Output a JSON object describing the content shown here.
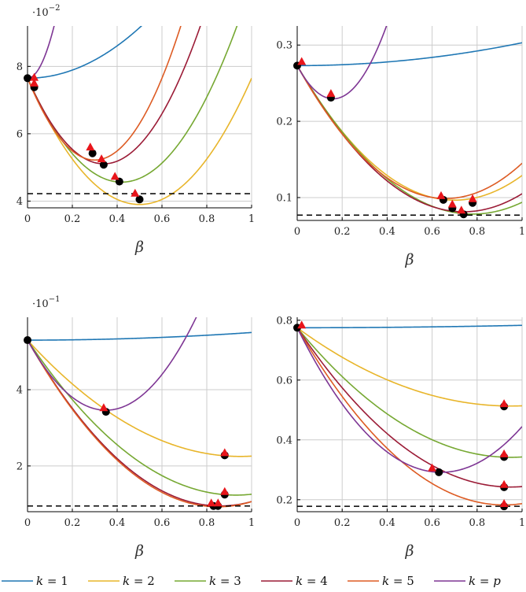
{
  "chart_data": [
    {
      "type": "line",
      "xlabel": "β",
      "scale_label": "·10",
      "scale_exp": "−2",
      "xlim": [
        0,
        1
      ],
      "ylim": [
        3.8,
        9.2
      ],
      "xticks": [
        0,
        0.2,
        0.4,
        0.6,
        0.8,
        1
      ],
      "xtick_labels": [
        "0",
        "0.2",
        "0.4",
        "0.6",
        "0.8",
        "1"
      ],
      "yticks": [
        4,
        6,
        8
      ],
      "ytick_labels": [
        "4",
        "6",
        "8"
      ],
      "dashed_level": 4.22,
      "start": 7.65,
      "series": [
        {
          "key": "1",
          "min_x": 0.0,
          "min_y": 7.65,
          "curv": 6
        },
        {
          "key": "2",
          "min_x": 0.5,
          "min_y": 4.05,
          "curv": 15
        },
        {
          "key": "3",
          "min_x": 0.42,
          "min_y": 4.58,
          "curv": 17.5
        },
        {
          "key": "4",
          "min_x": 0.34,
          "min_y": 5.05,
          "curv": 22
        },
        {
          "key": "5",
          "min_x": 0.3,
          "min_y": 5.42,
          "curv": 27
        },
        {
          "key": "p",
          "min_x": 0.0,
          "min_y": 7.65,
          "curv": 110
        }
      ],
      "black_points": [
        [
          0,
          7.65
        ],
        [
          0.03,
          7.38
        ],
        [
          0.29,
          5.42
        ],
        [
          0.34,
          5.08
        ],
        [
          0.41,
          4.58
        ],
        [
          0.5,
          4.05
        ]
      ],
      "red_triangles": [
        [
          0.03,
          7.62
        ],
        [
          0.03,
          7.45
        ],
        [
          0.28,
          5.55
        ],
        [
          0.33,
          5.2
        ],
        [
          0.39,
          4.68
        ],
        [
          0.48,
          4.18
        ]
      ]
    },
    {
      "type": "line",
      "xlabel": "β",
      "scale_label": "",
      "scale_exp": "",
      "xlim": [
        0,
        1
      ],
      "ylim": [
        0.07,
        0.325
      ],
      "xticks": [
        0,
        0.2,
        0.4,
        0.6,
        0.8,
        1
      ],
      "xtick_labels": [
        "0",
        "0.2",
        "0.4",
        "0.6",
        "0.8",
        "1"
      ],
      "yticks": [
        0.1,
        0.2,
        0.3
      ],
      "ytick_labels": [
        "0.1",
        "0.2",
        "0.3"
      ],
      "dashed_level": 0.077,
      "start": 0.273,
      "series": [
        {
          "key": "1",
          "min_x": 0.0,
          "min_y": 0.273,
          "curv": 0.03
        },
        {
          "key": "2",
          "min_x": 0.7,
          "min_y": 0.095,
          "curv": 0.36
        },
        {
          "key": "3",
          "min_x": 0.78,
          "min_y": 0.077,
          "curv": 0.32
        },
        {
          "key": "4",
          "min_x": 0.74,
          "min_y": 0.083,
          "curv": 0.35
        },
        {
          "key": "5",
          "min_x": 0.66,
          "min_y": 0.097,
          "curv": 0.4
        },
        {
          "key": "p",
          "min_x": 0.16,
          "min_y": 0.23,
          "curv": 1.7
        }
      ],
      "black_points": [
        [
          0,
          0.273
        ],
        [
          0.15,
          0.231
        ],
        [
          0.65,
          0.097
        ],
        [
          0.69,
          0.086
        ],
        [
          0.74,
          0.078
        ],
        [
          0.78,
          0.093
        ]
      ],
      "red_triangles": [
        [
          0.02,
          0.276
        ],
        [
          0.15,
          0.234
        ],
        [
          0.64,
          0.1
        ],
        [
          0.69,
          0.089
        ],
        [
          0.73,
          0.081
        ],
        [
          0.78,
          0.096
        ]
      ]
    },
    {
      "type": "line",
      "xlabel": "β",
      "scale_label": "·10",
      "scale_exp": "−1",
      "xlim": [
        0,
        1
      ],
      "ylim": [
        0.8,
        5.9
      ],
      "xticks": [
        0,
        0.2,
        0.4,
        0.6,
        0.8,
        1
      ],
      "xtick_labels": [
        "0",
        "0.2",
        "0.4",
        "0.6",
        "0.8",
        "1"
      ],
      "yticks": [
        2,
        4
      ],
      "ytick_labels": [
        "2",
        "4"
      ],
      "dashed_level": 0.95,
      "start": 5.3,
      "series": [
        {
          "key": "1",
          "min_x": 0.0,
          "min_y": 5.3,
          "curv": 0.2
        },
        {
          "key": "2",
          "min_x": 0.95,
          "min_y": 2.25,
          "curv": 3.38
        },
        {
          "key": "3",
          "min_x": 0.93,
          "min_y": 1.23,
          "curv": 4.7
        },
        {
          "key": "4",
          "min_x": 0.86,
          "min_y": 0.95,
          "curv": 5.88
        },
        {
          "key": "5",
          "min_x": 0.85,
          "min_y": 0.93,
          "curv": 6.05
        },
        {
          "key": "p",
          "min_x": 0.35,
          "min_y": 3.42,
          "curv": 15
        }
      ],
      "black_points": [
        [
          0,
          5.3
        ],
        [
          0.35,
          3.42
        ],
        [
          0.88,
          2.28
        ],
        [
          0.88,
          1.25
        ],
        [
          0.83,
          0.95
        ],
        [
          0.85,
          0.95
        ]
      ],
      "red_triangles": [
        [
          0.34,
          3.48
        ],
        [
          0.88,
          2.3
        ],
        [
          0.88,
          1.28
        ],
        [
          0.82,
          0.98
        ],
        [
          0.85,
          0.98
        ]
      ]
    },
    {
      "type": "line",
      "xlabel": "β",
      "scale_label": "",
      "scale_exp": "",
      "xlim": [
        0,
        1
      ],
      "ylim": [
        0.16,
        0.81
      ],
      "xticks": [
        0,
        0.2,
        0.4,
        0.6,
        0.8,
        1
      ],
      "xtick_labels": [
        "0",
        "0.2",
        "0.4",
        "0.6",
        "0.8",
        "1"
      ],
      "yticks": [
        0.2,
        0.4,
        0.6,
        0.8
      ],
      "ytick_labels": [
        "0.2",
        "0.4",
        "0.6",
        "0.8"
      ],
      "dashed_level": 0.178,
      "start": 0.775,
      "series": [
        {
          "key": "1",
          "min_x": 0.0,
          "min_y": 0.775,
          "curv": 0.008
        },
        {
          "key": "2",
          "min_x": 0.95,
          "min_y": 0.512,
          "curv": 0.29
        },
        {
          "key": "3",
          "min_x": 0.95,
          "min_y": 0.343,
          "curv": 0.48
        },
        {
          "key": "4",
          "min_x": 0.95,
          "min_y": 0.24,
          "curv": 0.59
        },
        {
          "key": "5",
          "min_x": 0.92,
          "min_y": 0.178,
          "curv": 0.7
        },
        {
          "key": "p",
          "min_x": 0.64,
          "min_y": 0.29,
          "curv": 1.18
        }
      ],
      "black_points": [
        [
          0,
          0.775
        ],
        [
          0.63,
          0.292
        ],
        [
          0.92,
          0.512
        ],
        [
          0.92,
          0.343
        ],
        [
          0.92,
          0.242
        ],
        [
          0.92,
          0.178
        ]
      ],
      "red_triangles": [
        [
          0.02,
          0.778
        ],
        [
          0.6,
          0.3
        ],
        [
          0.92,
          0.515
        ],
        [
          0.92,
          0.347
        ],
        [
          0.92,
          0.245
        ],
        [
          0.92,
          0.181
        ]
      ]
    }
  ],
  "legend": [
    {
      "key": "1",
      "label": "k = 1",
      "color": "#1f77b4"
    },
    {
      "key": "2",
      "label": "k = 2",
      "color": "#e8b52a"
    },
    {
      "key": "3",
      "label": "k = 3",
      "color": "#76a832"
    },
    {
      "key": "4",
      "label": "k = 4",
      "color": "#9b1b36"
    },
    {
      "key": "5",
      "label": "k = 5",
      "color": "#dd5b23"
    },
    {
      "key": "p",
      "label": "k = p",
      "color": "#7e3694"
    }
  ]
}
